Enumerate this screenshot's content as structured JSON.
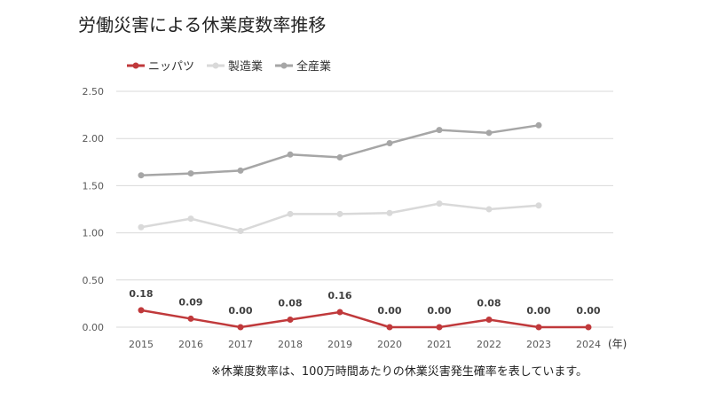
{
  "title": "労働災害による休業度数率推移",
  "note": "※休業度数率は、100万時間あたりの休業災害発生確率を表しています。",
  "chart_data": {
    "type": "line",
    "title": "労働災害による休業度数率推移",
    "categories": [
      "2015",
      "2016",
      "2017",
      "2018",
      "2019",
      "2020",
      "2021",
      "2022",
      "2023",
      "2024"
    ],
    "x_unit": "(年)",
    "ylim": [
      0,
      2.5
    ],
    "yticks": [
      "0.00",
      "0.50",
      "1.00",
      "1.50",
      "2.00",
      "2.50"
    ],
    "grid": true,
    "legend_position": "top-left",
    "series": [
      {
        "name": "ニッパツ",
        "color": "#c0393b",
        "values": [
          0.18,
          0.09,
          0.0,
          0.08,
          0.16,
          0.0,
          0.0,
          0.08,
          0.0,
          0.0
        ],
        "labels": [
          "0.18",
          "0.09",
          "0.00",
          "0.08",
          "0.16",
          "0.00",
          "0.00",
          "0.08",
          "0.00",
          "0.00"
        ]
      },
      {
        "name": "製造業",
        "color": "#d9d9d9",
        "values": [
          1.06,
          1.15,
          1.02,
          1.2,
          1.2,
          1.21,
          1.31,
          1.25,
          1.29,
          null
        ]
      },
      {
        "name": "全産業",
        "color": "#a6a6a6",
        "values": [
          1.61,
          1.63,
          1.66,
          1.83,
          1.8,
          1.95,
          2.09,
          2.06,
          2.14,
          null
        ]
      }
    ]
  }
}
